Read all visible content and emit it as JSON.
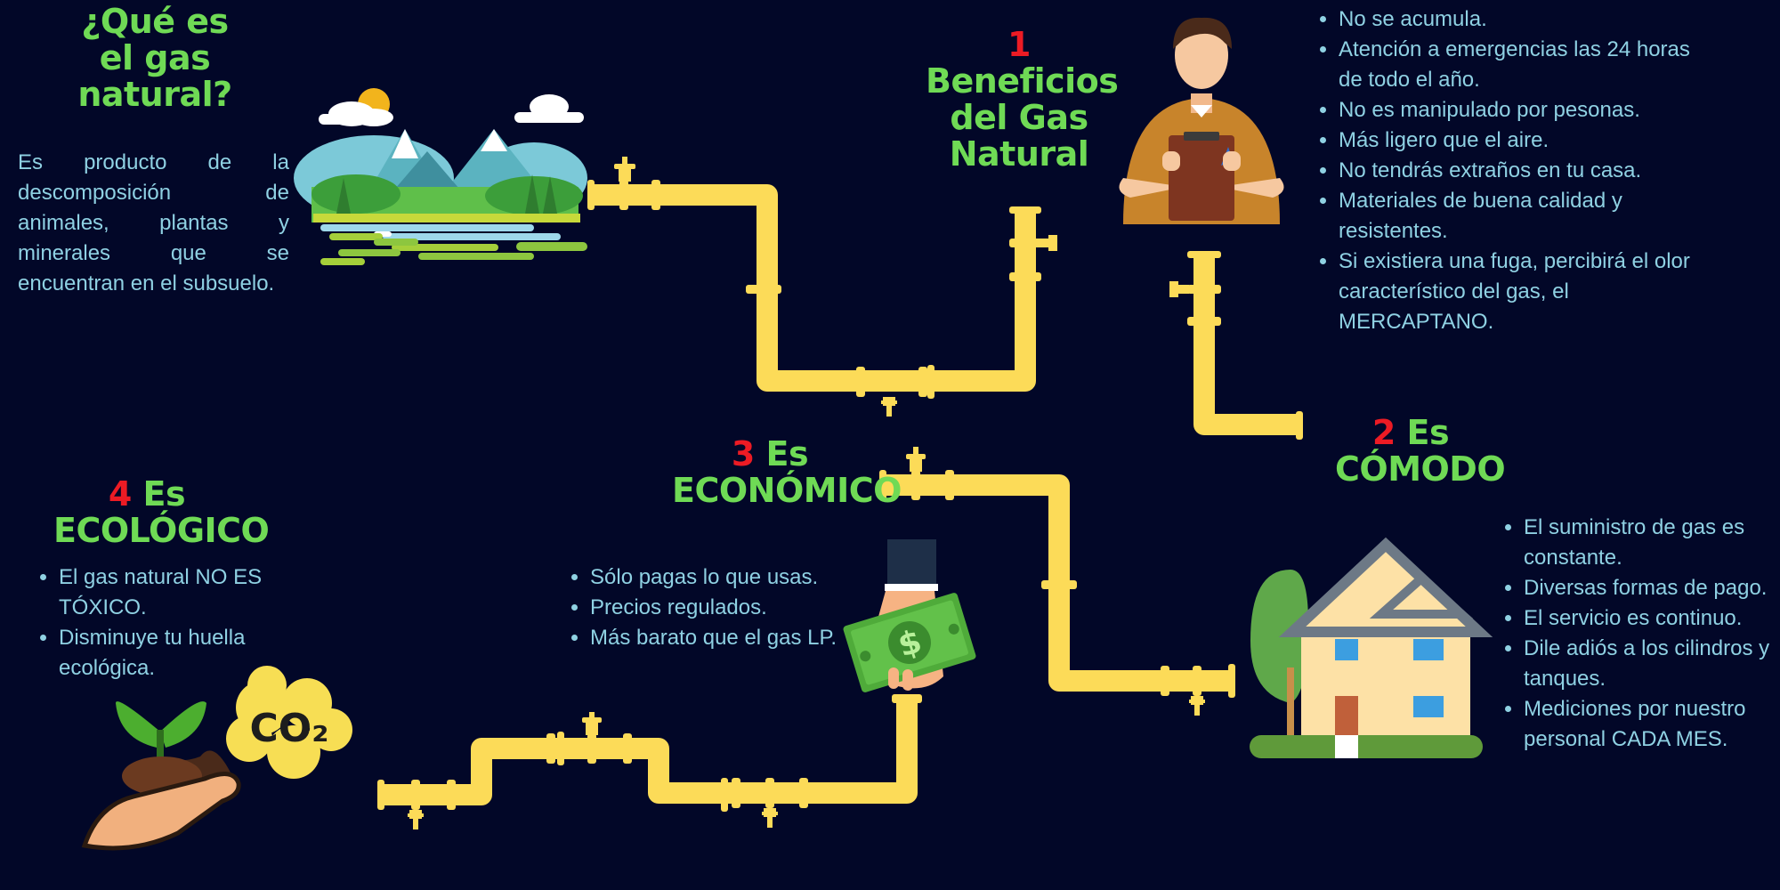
{
  "colors": {
    "background": "#020728",
    "title_green": "#6fda55",
    "number_red": "#ec1b24",
    "body_text": "#8fd1e3",
    "pipe_yellow": "#fcdb58"
  },
  "intro": {
    "title": "¿Qué es el gas natural?",
    "text": "Es producto de la descomposición de animales, plantas y minerales que se encuentran en el subsuelo."
  },
  "sections": [
    {
      "number": "1",
      "title": "Beneficios del Gas Natural",
      "points": [
        "No se acumula.",
        "Atención a emergencias las 24 horas de todo el año.",
        "No es manipulado por pesonas.",
        "Más ligero que el aire.",
        "No tendrás extraños en tu casa.",
        "Materiales de buena calidad y resistentes.",
        "Si existiera una fuga, percibirá el olor característico del gas, el MERCAPTANO."
      ]
    },
    {
      "number": "2",
      "title": "Es CÓMODO",
      "points": [
        "El suministro de gas es constante.",
        "Diversas formas de pago.",
        "El servicio es continuo.",
        "Dile adiós a los cilindros y tanques.",
        "Mediciones por nuestro personal CADA MES."
      ]
    },
    {
      "number": "3",
      "title": "Es ECONÓMICO",
      "points": [
        "Sólo pagas lo que usas.",
        "Precios regulados.",
        "Más barato que el gas LP."
      ]
    },
    {
      "number": "4",
      "title": "Es ECOLÓGICO",
      "points": [
        "El gas natural NO ES TÓXICO.",
        "Disminuye tu huella ecológica."
      ]
    }
  ],
  "illustrations": {
    "co2_label": "CO₂",
    "dollar_label": "$",
    "landscape": "mountain-landscape-icon",
    "technician": "technician-with-clipboard-icon",
    "house": "house-icon",
    "money_hand": "hand-with-money-icon",
    "plant_hand": "hand-with-plant-icon"
  }
}
